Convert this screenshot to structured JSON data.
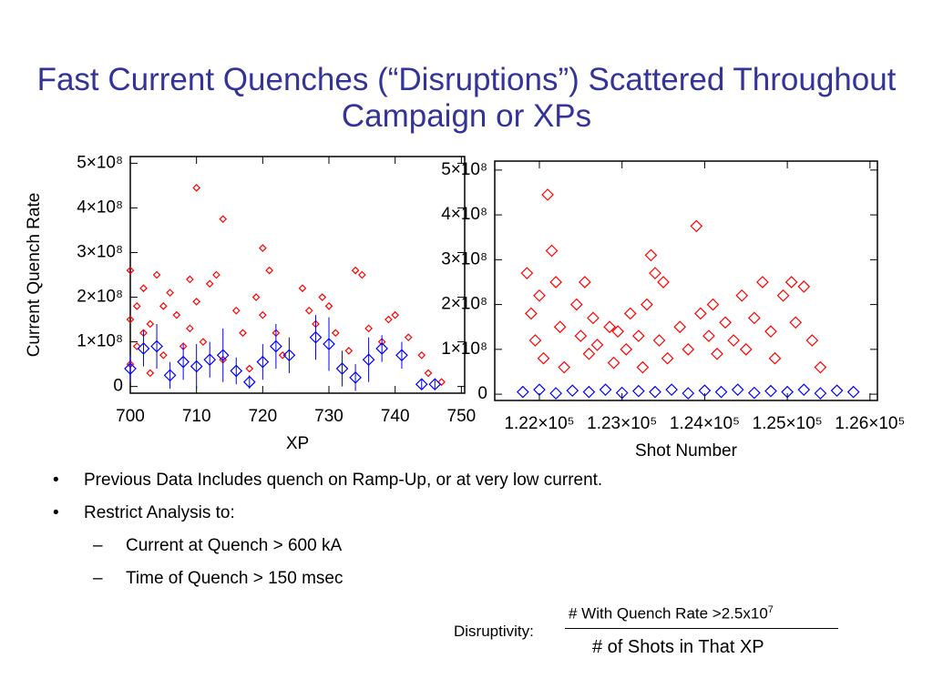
{
  "title": "Fast Current Quenches (“Disruptions”) Scattered Throughout Campaign or XPs",
  "bullets": [
    {
      "text": "Previous Data Includes quench on Ramp-Up, or at very low current.",
      "sub": []
    },
    {
      "text": "Restrict Analysis to:",
      "sub": [
        "Current at Quench > 600 kA",
        "Time of Quench > 150 msec"
      ]
    }
  ],
  "formula": {
    "label": "Disruptivity:",
    "numerator": "# With Quench Rate >2.5x10",
    "exponent": "7",
    "denominator": "# of Shots in That XP"
  },
  "chart_data": [
    {
      "type": "scatter",
      "xlabel": "XP",
      "ylabel": "Current Quench Rate",
      "xlim": [
        700,
        750.5
      ],
      "ylim": [
        -15000000.0,
        515000000.0
      ],
      "xticks": [
        700,
        710,
        720,
        730,
        740,
        750
      ],
      "yticks": [
        {
          "value": 0,
          "label": "0"
        },
        {
          "value": 100000000.0,
          "label": "1×10⁸"
        },
        {
          "value": 200000000.0,
          "label": "2×10⁸"
        },
        {
          "value": 300000000.0,
          "label": "3×10⁸"
        },
        {
          "value": 400000000.0,
          "label": "4×10⁸"
        },
        {
          "value": 500000000.0,
          "label": "5×10⁸"
        }
      ],
      "series": [
        {
          "color": "#ff0000",
          "x": [
            700,
            700,
            700,
            701,
            701,
            702,
            702,
            703,
            703,
            704,
            705,
            705,
            706,
            707,
            708,
            709,
            709,
            710,
            710,
            711,
            712,
            713,
            714,
            714,
            716,
            717,
            718,
            719,
            720,
            720,
            721,
            722,
            723,
            726,
            727,
            728,
            729,
            730,
            731,
            733,
            734,
            735,
            736,
            738,
            739,
            740,
            742,
            744,
            745,
            747
          ],
          "values": [
            260000000.0,
            150000000.0,
            50000000.0,
            180000000.0,
            90000000.0,
            220000000.0,
            120000000.0,
            140000000.0,
            30000000.0,
            250000000.0,
            180000000.0,
            70000000.0,
            210000000.0,
            160000000.0,
            90000000.0,
            240000000.0,
            130000000.0,
            445000000.0,
            190000000.0,
            100000000.0,
            230000000.0,
            250000000.0,
            375000000.0,
            60000000.0,
            170000000.0,
            120000000.0,
            40000000.0,
            200000000.0,
            310000000.0,
            160000000.0,
            260000000.0,
            120000000.0,
            70000000.0,
            220000000.0,
            170000000.0,
            140000000.0,
            200000000.0,
            180000000.0,
            120000000.0,
            80000000.0,
            260000000.0,
            250000000.0,
            130000000.0,
            100000000.0,
            150000000.0,
            160000000.0,
            110000000.0,
            70000000.0,
            30000000.0,
            10000000.0
          ]
        },
        {
          "color": "#0000ff",
          "x": [
            700,
            702,
            704,
            706,
            708,
            710,
            712,
            714,
            716,
            718,
            720,
            722,
            724,
            728,
            730,
            732,
            734,
            736,
            738,
            741,
            744,
            746
          ],
          "values": [
            40000000.0,
            85000000.0,
            90000000.0,
            25000000.0,
            55000000.0,
            45000000.0,
            60000000.0,
            70000000.0,
            35000000.0,
            10000000.0,
            55000000.0,
            90000000.0,
            70000000.0,
            110000000.0,
            95000000.0,
            40000000.0,
            20000000.0,
            60000000.0,
            85000000.0,
            70000000.0,
            5000000.0,
            5000000.0
          ],
          "errors": [
            30000000.0,
            40000000.0,
            50000000.0,
            30000000.0,
            40000000.0,
            50000000.0,
            40000000.0,
            60000000.0,
            30000000.0,
            15000000.0,
            40000000.0,
            50000000.0,
            40000000.0,
            50000000.0,
            60000000.0,
            40000000.0,
            30000000.0,
            50000000.0,
            30000000.0,
            30000000.0,
            10000000.0,
            10000000.0
          ]
        }
      ]
    },
    {
      "type": "scatter",
      "xlabel": "Shot Number",
      "xlim": [
        121460,
        126090
      ],
      "ylim": [
        -14000000.0,
        520000000.0
      ],
      "xticks": [
        {
          "value": 122000,
          "label": "1.22×10⁵"
        },
        {
          "value": 123000,
          "label": "1.23×10⁵"
        },
        {
          "value": 124000,
          "label": "1.24×10⁵"
        },
        {
          "value": 125000,
          "label": "1.25×10⁵"
        },
        {
          "value": 126000,
          "label": "1.26×10⁵"
        }
      ],
      "yticks": [
        {
          "value": 0,
          "label": "0"
        },
        {
          "value": 100000000.0,
          "label": "1×10⁸"
        },
        {
          "value": 200000000.0,
          "label": "2×10⁸"
        },
        {
          "value": 300000000.0,
          "label": "3×10⁸"
        },
        {
          "value": 400000000.0,
          "label": "4×10⁸"
        },
        {
          "value": 500000000.0,
          "label": "5×10⁸"
        }
      ],
      "series": [
        {
          "color": "#ff0000",
          "x": [
            121850,
            121900,
            121950,
            122000,
            122050,
            122100,
            122150,
            122200,
            122250,
            122300,
            122450,
            122500,
            122550,
            122600,
            122650,
            122700,
            122850,
            122900,
            122950,
            123050,
            123100,
            123200,
            123250,
            123300,
            123350,
            123400,
            123450,
            123500,
            123550,
            123700,
            123800,
            123900,
            123950,
            124050,
            124100,
            124150,
            124250,
            124350,
            124450,
            124500,
            124600,
            124700,
            124800,
            124850,
            124950,
            125050,
            125100,
            125200,
            125300,
            125400
          ],
          "values": [
            270000000.0,
            180000000.0,
            120000000.0,
            220000000.0,
            80000000.0,
            445000000.0,
            320000000.0,
            250000000.0,
            150000000.0,
            60000000.0,
            200000000.0,
            130000000.0,
            250000000.0,
            90000000.0,
            170000000.0,
            110000000.0,
            150000000.0,
            70000000.0,
            140000000.0,
            100000000.0,
            180000000.0,
            130000000.0,
            60000000.0,
            200000000.0,
            310000000.0,
            270000000.0,
            120000000.0,
            250000000.0,
            80000000.0,
            150000000.0,
            100000000.0,
            375000000.0,
            180000000.0,
            130000000.0,
            200000000.0,
            90000000.0,
            160000000.0,
            120000000.0,
            220000000.0,
            100000000.0,
            170000000.0,
            250000000.0,
            140000000.0,
            80000000.0,
            220000000.0,
            250000000.0,
            160000000.0,
            240000000.0,
            120000000.0,
            60000000.0
          ]
        },
        {
          "color": "#0000ff",
          "x": [
            121800,
            122000,
            122200,
            122400,
            122600,
            122800,
            123000,
            123200,
            123400,
            123600,
            123800,
            124000,
            124200,
            124400,
            124600,
            124800,
            125000,
            125200,
            125400,
            125600,
            125800
          ],
          "values": [
            5000000.0,
            10000000.0,
            2000000.0,
            8000000.0,
            5000000.0,
            10000000.0,
            3000000.0,
            7000000.0,
            5000000.0,
            10000000.0,
            2000000.0,
            8000000.0,
            5000000.0,
            10000000.0,
            3000000.0,
            7000000.0,
            5000000.0,
            10000000.0,
            2000000.0,
            8000000.0,
            5000000.0
          ]
        }
      ]
    }
  ]
}
